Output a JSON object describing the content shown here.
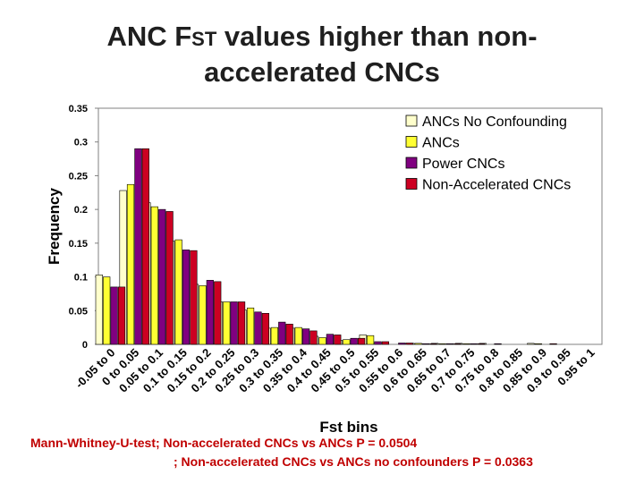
{
  "slide": {
    "title_part1": "ANC F",
    "title_sub": "ST",
    "title_part2": " values higher than non-",
    "title_line2": "accelerated CNCs"
  },
  "footnotes": {
    "line1": "Mann-Whitney-U-test; Non-accelerated CNCs vs ANCs P = 0.0504",
    "line2": "; Non-accelerated CNCs vs ANCs  no confounders P = 0.0363"
  },
  "colors": {
    "anc_no_conf": "#ffffcc",
    "anc": "#ffff33",
    "power": "#800080",
    "nonacc": "#cc0022",
    "title": "#1f1f1f",
    "footnote": "#c00000"
  },
  "chart_data": {
    "type": "bar",
    "title": "",
    "xlabel": "Fst bins",
    "ylabel": "Frequency",
    "ylim": [
      0,
      0.35
    ],
    "yticks": [
      "0",
      "0.05",
      "0.1",
      "0.15",
      "0.2",
      "0.25",
      "0.3",
      "0.35"
    ],
    "legend_position": "top-right",
    "categories": [
      "-0.05 to 0",
      "0 to 0.05",
      "0.05 to 0.1",
      "0.1 to 0.15",
      "0.15 to 0.2",
      "0.2 to 0.25",
      "0.25 to 0.3",
      "0.3 to 0.35",
      "0.35 to 0.4",
      "0.4 to 0.45",
      "0.45 to 0.5",
      "0.5 to 0.55",
      "0.55 to 0.6",
      "0.6 to 0.65",
      "0.65 to 0.7",
      "0.7 to 0.75",
      "0.75 to 0.8",
      "0.8 to 0.85",
      "0.85 to 0.9",
      "0.9 to 0.95",
      "0.95 to 1"
    ],
    "series": [
      {
        "name": "ANCs No Confounding",
        "color": "#ffffcc",
        "values": [
          0.103,
          0.228,
          0.21,
          0.153,
          0.089,
          0.063,
          0.051,
          0.024,
          0.024,
          0.012,
          0.006,
          0.014,
          0.0,
          0.0015,
          0.0015,
          0.0015,
          0.0015,
          0.0,
          0.0015,
          0.0,
          0.0
        ]
      },
      {
        "name": "ANCs",
        "color": "#ffff33",
        "values": [
          0.1,
          0.237,
          0.204,
          0.155,
          0.087,
          0.063,
          0.054,
          0.025,
          0.025,
          0.01,
          0.007,
          0.013,
          0.0,
          0.0015,
          0.001,
          0.001,
          0.0,
          0.0,
          0.001,
          0.0,
          0.0
        ]
      },
      {
        "name": "Power CNCs",
        "color": "#800080",
        "values": [
          0.085,
          0.29,
          0.2,
          0.14,
          0.095,
          0.063,
          0.048,
          0.033,
          0.023,
          0.015,
          0.009,
          0.004,
          0.002,
          0.001,
          0.001,
          0.001,
          0.001,
          0.0,
          0.0,
          0.0,
          0.0
        ]
      },
      {
        "name": "Non-Accelerated CNCs",
        "color": "#cc0022",
        "values": [
          0.085,
          0.29,
          0.197,
          0.139,
          0.093,
          0.063,
          0.046,
          0.03,
          0.02,
          0.014,
          0.009,
          0.004,
          0.002,
          0.001,
          0.001,
          0.001,
          0.0,
          0.0,
          0.001,
          0.0,
          0.0
        ]
      }
    ]
  }
}
